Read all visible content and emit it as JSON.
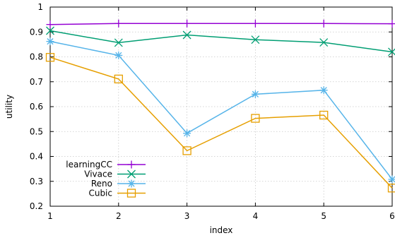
{
  "chart_data": {
    "type": "line",
    "title": "",
    "xlabel": "index",
    "ylabel": "utility",
    "x": [
      1,
      2,
      3,
      4,
      5,
      6
    ],
    "xlim": [
      1,
      6
    ],
    "ylim": [
      0.2,
      1.0
    ],
    "xticks": [
      "1",
      "2",
      "3",
      "4",
      "5",
      "6"
    ],
    "yticks": [
      "0.2",
      "0.3",
      "0.4",
      "0.5",
      "0.6",
      "0.7",
      "0.8",
      "0.9",
      "1"
    ],
    "grid": true,
    "legend_position": "bottom-left",
    "series": [
      {
        "name": "learningCC",
        "color": "#9400d3",
        "marker": "plus",
        "values": [
          0.93,
          0.934,
          0.934,
          0.934,
          0.934,
          0.933
        ]
      },
      {
        "name": "Vivace",
        "color": "#009e73",
        "marker": "x",
        "values": [
          0.905,
          0.857,
          0.888,
          0.869,
          0.858,
          0.82
        ]
      },
      {
        "name": "Reno",
        "color": "#56b4e9",
        "marker": "star",
        "values": [
          0.862,
          0.806,
          0.493,
          0.65,
          0.666,
          0.308
        ]
      },
      {
        "name": "Cubic",
        "color": "#e69f00",
        "marker": "square",
        "values": [
          0.798,
          0.711,
          0.423,
          0.553,
          0.566,
          0.273
        ]
      }
    ]
  }
}
